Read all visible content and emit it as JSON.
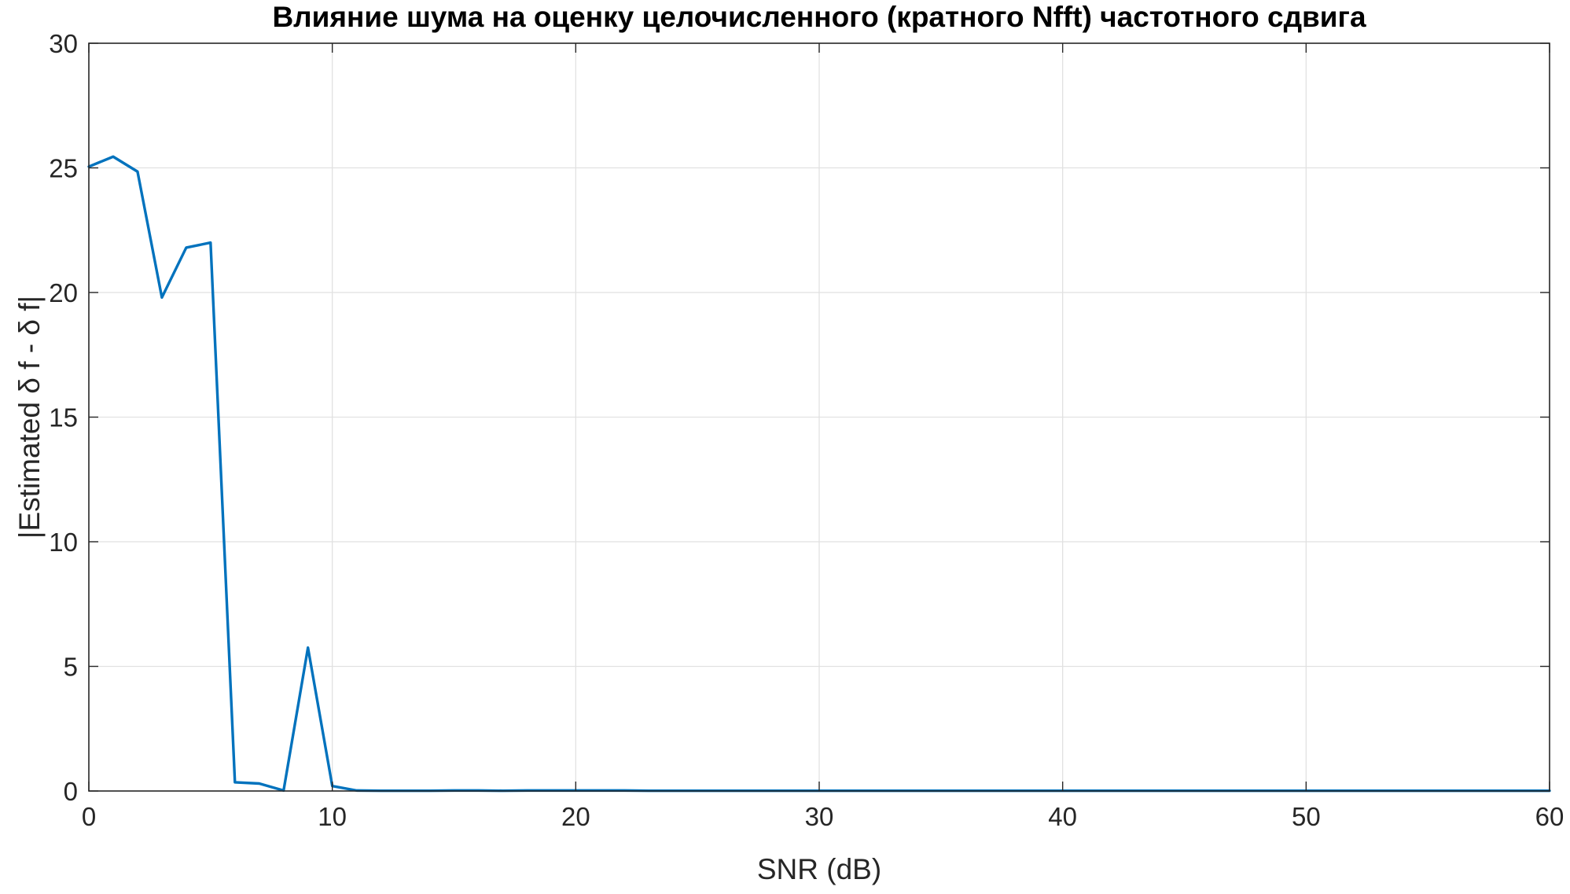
{
  "chart_data": {
    "type": "line",
    "title": "Влияние шума на оценку целочисленного (кратного Nfft) частотного сдвига",
    "xlabel": "SNR (dB)",
    "ylabel": "|Estimated δ f - δ f|",
    "xlim": [
      0,
      60
    ],
    "ylim": [
      0,
      30
    ],
    "xticks": [
      0,
      10,
      20,
      30,
      40,
      50,
      60
    ],
    "yticks": [
      0,
      5,
      10,
      15,
      20,
      25,
      30
    ],
    "xtick_labels": [
      "0",
      "10",
      "20",
      "30",
      "40",
      "50",
      "60"
    ],
    "ytick_labels": [
      "0",
      "5",
      "10",
      "15",
      "20",
      "25",
      "30"
    ],
    "grid": true,
    "series": [
      {
        "color": "#0072BD",
        "x": [
          0,
          1,
          2,
          3,
          4,
          5,
          6,
          7,
          8,
          9,
          10,
          11,
          12,
          13,
          14,
          15,
          16,
          17,
          18,
          19,
          20,
          21,
          22,
          23,
          24,
          25,
          26,
          27,
          28,
          29,
          30,
          31,
          32,
          33,
          34,
          35,
          36,
          37,
          38,
          39,
          40,
          41,
          42,
          43,
          44,
          45,
          46,
          47,
          48,
          49,
          50,
          51,
          52,
          53,
          54,
          55,
          56,
          57,
          58,
          59,
          60
        ],
        "y": [
          25.05,
          25.45,
          24.85,
          19.8,
          21.8,
          22.0,
          0.35,
          0.3,
          0.02,
          5.75,
          0.2,
          0.02,
          0.01,
          0.01,
          0.01,
          0.02,
          0.02,
          0.01,
          0.02,
          0.02,
          0.02,
          0.02,
          0.02,
          0.01,
          0.01,
          0.01,
          0.01,
          0.01,
          0.01,
          0.01,
          0.01,
          0.01,
          0.01,
          0.01,
          0.01,
          0.01,
          0.01,
          0.01,
          0.01,
          0.01,
          0.01,
          0.01,
          0.01,
          0.01,
          0.01,
          0.01,
          0.01,
          0.01,
          0.01,
          0.01,
          0.01,
          0.01,
          0.01,
          0.01,
          0.01,
          0.01,
          0.01,
          0.01,
          0.01,
          0.01,
          0.01
        ]
      }
    ]
  }
}
